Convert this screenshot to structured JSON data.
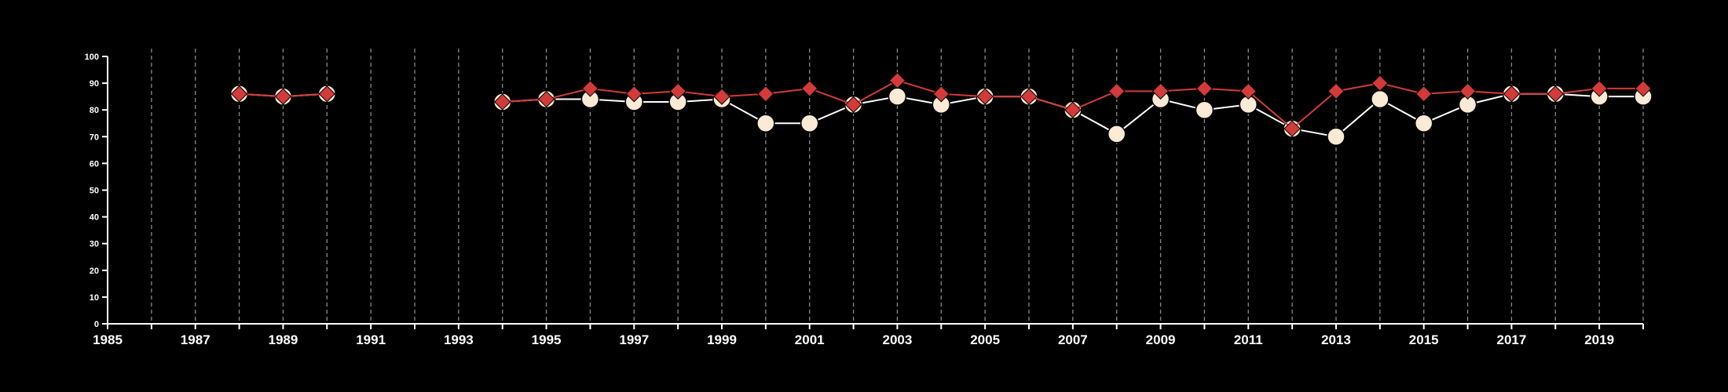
{
  "chart_data": {
    "type": "line",
    "title": "",
    "xlabel": "",
    "ylabel": "",
    "xlim": [
      1985,
      2020
    ],
    "ylim": [
      0,
      100
    ],
    "x_ticks": [
      1985,
      1987,
      1989,
      1991,
      1993,
      1995,
      1997,
      1999,
      2001,
      2003,
      2005,
      2007,
      2009,
      2011,
      2013,
      2015,
      2017,
      2019
    ],
    "y_ticks": [
      0,
      10,
      20,
      30,
      40,
      50,
      60,
      70,
      80,
      90,
      100
    ],
    "grid": "vertical-dashed",
    "colors": {
      "background": "#000000",
      "axis": "#ffffff",
      "grid": "#888888",
      "series_circle": "#fbead5",
      "series_circle_line": "#ffffff",
      "series_diamond": "#d33a3a"
    },
    "series": [
      {
        "marker": "circle",
        "color": "#fbead5",
        "points": [
          [
            1988,
            86
          ],
          [
            1989,
            85
          ],
          [
            1990,
            86
          ],
          [
            1994,
            83
          ],
          [
            1995,
            84
          ],
          [
            1996,
            84
          ],
          [
            1997,
            83
          ],
          [
            1998,
            83
          ],
          [
            1999,
            84
          ],
          [
            2000,
            75
          ],
          [
            2001,
            75
          ],
          [
            2002,
            82
          ],
          [
            2003,
            85
          ],
          [
            2004,
            82
          ],
          [
            2005,
            85
          ],
          [
            2006,
            85
          ],
          [
            2007,
            80
          ],
          [
            2008,
            71
          ],
          [
            2009,
            84
          ],
          [
            2010,
            80
          ],
          [
            2011,
            82
          ],
          [
            2012,
            73
          ],
          [
            2013,
            70
          ],
          [
            2014,
            84
          ],
          [
            2015,
            75
          ],
          [
            2016,
            82
          ],
          [
            2017,
            86
          ],
          [
            2018,
            86
          ],
          [
            2019,
            85
          ],
          [
            2020,
            85
          ]
        ]
      },
      {
        "marker": "diamond",
        "color": "#d33a3a",
        "points": [
          [
            1988,
            86
          ],
          [
            1989,
            85
          ],
          [
            1990,
            86
          ],
          [
            1994,
            83
          ],
          [
            1995,
            84
          ],
          [
            1996,
            88
          ],
          [
            1997,
            86
          ],
          [
            1998,
            87
          ],
          [
            1999,
            85
          ],
          [
            2000,
            86
          ],
          [
            2001,
            88
          ],
          [
            2002,
            82
          ],
          [
            2003,
            91
          ],
          [
            2004,
            86
          ],
          [
            2005,
            85
          ],
          [
            2006,
            85
          ],
          [
            2007,
            80
          ],
          [
            2008,
            87
          ],
          [
            2009,
            87
          ],
          [
            2010,
            88
          ],
          [
            2011,
            87
          ],
          [
            2012,
            73
          ],
          [
            2013,
            87
          ],
          [
            2014,
            90
          ],
          [
            2015,
            86
          ],
          [
            2016,
            87
          ],
          [
            2017,
            86
          ],
          [
            2018,
            86
          ],
          [
            2019,
            88
          ],
          [
            2020,
            88
          ]
        ]
      }
    ]
  }
}
